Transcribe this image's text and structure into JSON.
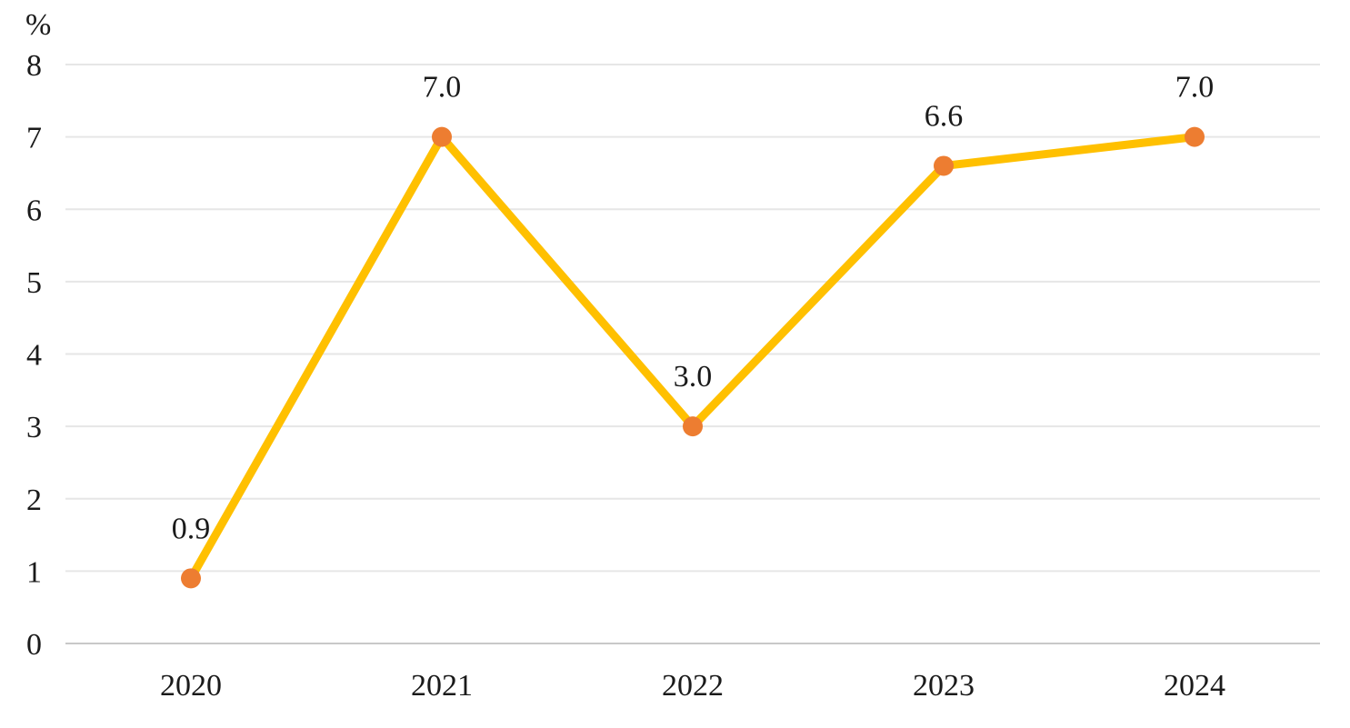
{
  "chart_data": {
    "type": "line",
    "title": "",
    "ylabel": "%",
    "xlabel": "",
    "categories": [
      "2020",
      "2021",
      "2022",
      "2023",
      "2024"
    ],
    "series": [
      {
        "values": [
          0.9,
          7.0,
          3.0,
          6.6,
          7.0
        ],
        "labels": [
          "0.9",
          "7.0",
          "3.0",
          "6.6",
          "7.0"
        ],
        "color": "#FFC000",
        "marker_color": "#ED7D31"
      }
    ],
    "ylim": [
      0,
      8
    ],
    "yticks": [
      "0",
      "1",
      "2",
      "3",
      "4",
      "5",
      "6",
      "7",
      "8"
    ],
    "grid": true,
    "legend": "none"
  }
}
